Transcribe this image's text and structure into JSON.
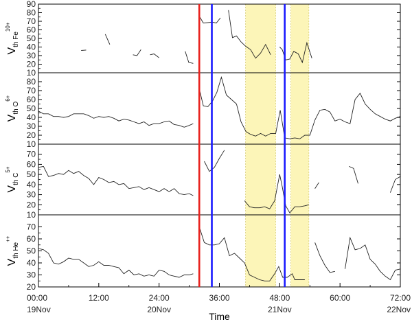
{
  "chart_data": {
    "type": "line",
    "xlabel": "Time",
    "x_range_hours": [
      0,
      72
    ],
    "x_ticks": [
      {
        "hour": 0,
        "label": "00:00",
        "date": "19Nov"
      },
      {
        "hour": 12,
        "label": "12:00",
        "date": ""
      },
      {
        "hour": 24,
        "label": "24:00",
        "date": "20Nov"
      },
      {
        "hour": 36,
        "label": "36:00",
        "date": ""
      },
      {
        "hour": 48,
        "label": "48:00",
        "date": "21Nov"
      },
      {
        "hour": 60,
        "label": "60:00",
        "date": ""
      },
      {
        "hour": 72,
        "label": "72:00",
        "date": "22Nov"
      }
    ],
    "vertical_lines": [
      {
        "hour": 32,
        "color": "#e8201c"
      },
      {
        "hour": 34.5,
        "color": "#1a1aff"
      },
      {
        "hour": 49,
        "color": "#1a1aff"
      }
    ],
    "shaded_regions": [
      {
        "start": 41.2,
        "end": 47.2,
        "color": "#fcf5b8"
      },
      {
        "start": 50.2,
        "end": 53.8,
        "color": "#fcf5b8"
      }
    ],
    "panels": [
      {
        "id": "fe",
        "ylabel": {
          "main": "V",
          "sub": "th Fe",
          "sup": "10+"
        },
        "ylim": [
          10,
          90
        ],
        "yticks": [
          10,
          20,
          30,
          40,
          50,
          60,
          70,
          80,
          90
        ],
        "segments": [
          [
            [
              8.5,
              36
            ],
            [
              9.5,
              36.5
            ]
          ],
          [
            [
              13.3,
              55
            ],
            [
              14.2,
              43
            ]
          ],
          [
            [
              18.8,
              31
            ],
            [
              19.6,
              30
            ],
            [
              20.4,
              37
            ]
          ],
          [
            [
              22.2,
              31
            ],
            [
              23.0,
              32
            ],
            [
              24.0,
              27.5
            ]
          ],
          [
            [
              29.2,
              35
            ],
            [
              29.9,
              22
            ],
            [
              30.8,
              21
            ]
          ],
          [
            [
              32.0,
              76
            ],
            [
              32.8,
              68
            ],
            [
              33.7,
              68.5
            ],
            [
              34.6,
              69
            ],
            [
              35.4,
              68
            ],
            [
              36.2,
              74
            ]
          ],
          [
            [
              37.8,
              83
            ],
            [
              38.6,
              51
            ],
            [
              39.4,
              53
            ],
            [
              40.3,
              46
            ],
            [
              41.2,
              41
            ],
            [
              42.2,
              37
            ],
            [
              43.2,
              27
            ],
            [
              44.2,
              33
            ],
            [
              45.2,
              43
            ],
            [
              46.2,
              31
            ]
          ],
          [
            [
              48.0,
              40
            ],
            [
              48.5,
              37
            ],
            [
              49.2,
              25
            ],
            [
              50.0,
              26
            ],
            [
              50.8,
              35
            ],
            [
              51.7,
              32
            ],
            [
              52.5,
              22
            ],
            [
              53.4,
              45
            ],
            [
              54.4,
              27
            ]
          ]
        ]
      },
      {
        "id": "o",
        "ylabel": {
          "main": "V",
          "sub": "th O",
          "sup": "6+"
        },
        "ylim": [
          10,
          90
        ],
        "yticks": [
          10,
          20,
          30,
          40,
          50,
          60,
          70,
          80
        ],
        "segments": [
          [
            [
              0.0,
              47
            ],
            [
              1.0,
              44
            ],
            [
              2.0,
              44
            ],
            [
              3.0,
              41
            ],
            [
              4.0,
              41
            ],
            [
              5.0,
              40
            ],
            [
              6.0,
              41
            ],
            [
              7.0,
              44
            ],
            [
              8.0,
              44
            ],
            [
              9.0,
              44
            ],
            [
              10.0,
              42
            ],
            [
              11.0,
              39
            ],
            [
              12.0,
              41
            ],
            [
              13.0,
              40
            ],
            [
              14.0,
              41
            ],
            [
              15.0,
              39
            ],
            [
              16.0,
              36
            ],
            [
              17.0,
              38
            ],
            [
              18.0,
              37
            ],
            [
              19.0,
              35
            ],
            [
              20.0,
              33
            ],
            [
              21.0,
              35
            ],
            [
              22.0,
              31
            ],
            [
              23.0,
              33
            ],
            [
              24.0,
              33
            ],
            [
              25.0,
              35
            ],
            [
              26.0,
              36
            ],
            [
              27.0,
              32
            ],
            [
              28.0,
              31
            ],
            [
              29.0,
              29
            ],
            [
              30.0,
              31
            ],
            [
              30.8,
              33
            ]
          ],
          [
            [
              32.0,
              72
            ],
            [
              32.8,
              53
            ],
            [
              33.7,
              52
            ],
            [
              34.6,
              58
            ],
            [
              35.5,
              68
            ],
            [
              36.4,
              85
            ],
            [
              37.4,
              65
            ],
            [
              38.4,
              60
            ],
            [
              39.4,
              55
            ],
            [
              40.3,
              35
            ],
            [
              41.3,
              24
            ],
            [
              42.2,
              21
            ],
            [
              43.2,
              19
            ],
            [
              44.2,
              22
            ],
            [
              45.2,
              19
            ],
            [
              46.2,
              22
            ],
            [
              47.2,
              22
            ],
            [
              48.1,
              48
            ],
            [
              49.0,
              17
            ],
            [
              50.0,
              16
            ],
            [
              51.0,
              17
            ],
            [
              52.0,
              16
            ],
            [
              53.0,
              20
            ],
            [
              54.0,
              20
            ],
            [
              55.0,
              37
            ],
            [
              56.0,
              48
            ],
            [
              57.0,
              49
            ],
            [
              58.0,
              46
            ],
            [
              59.0,
              36
            ],
            [
              60.0,
              38
            ],
            [
              61.0,
              35
            ],
            [
              62.0,
              33
            ],
            [
              63.0,
              60
            ],
            [
              64.0,
              67
            ],
            [
              65.0,
              55
            ],
            [
              66.0,
              49
            ],
            [
              67.0,
              44
            ],
            [
              68.0,
              41
            ],
            [
              69.0,
              38
            ],
            [
              70.0,
              36
            ],
            [
              71.0,
              39
            ],
            [
              72.0,
              41
            ]
          ]
        ]
      },
      {
        "id": "c",
        "ylabel": {
          "main": "V",
          "sub": "th C",
          "sup": "5+"
        },
        "ylim": [
          10,
          80
        ],
        "yticks": [
          10,
          20,
          30,
          40,
          50,
          60,
          70
        ],
        "segments": [
          [
            [
              0.0,
              57
            ],
            [
              1.0,
              58
            ],
            [
              2.0,
              48
            ],
            [
              3.0,
              49
            ],
            [
              4.0,
              51
            ],
            [
              5.0,
              50
            ],
            [
              6.0,
              54
            ],
            [
              7.0,
              51
            ],
            [
              8.0,
              53
            ],
            [
              9.0,
              49
            ],
            [
              10.0,
              46
            ],
            [
              11.0,
              40
            ],
            [
              12.0,
              47
            ],
            [
              13.0,
              45
            ],
            [
              14.0,
              42
            ],
            [
              15.0,
              43
            ],
            [
              16.0,
              40
            ],
            [
              17.0,
              41
            ],
            [
              18.0,
              36
            ],
            [
              19.0,
              37
            ],
            [
              20.0,
              38
            ],
            [
              21.0,
              35
            ],
            [
              22.0,
              37
            ],
            [
              23.0,
              35
            ],
            [
              24.0,
              33
            ],
            [
              25.0,
              36
            ],
            [
              26.0,
              33
            ],
            [
              27.0,
              36
            ],
            [
              28.0,
              31
            ],
            [
              29.0,
              30
            ],
            [
              30.0,
              31
            ],
            [
              30.8,
              29
            ]
          ],
          [
            [
              33.0,
              63
            ],
            [
              34.0,
              53
            ],
            [
              35.0,
              57
            ],
            [
              36.0,
              66
            ],
            [
              37.0,
              74
            ]
          ],
          [
            [
              41.0,
              24
            ],
            [
              42.0,
              18
            ],
            [
              43.0,
              17
            ],
            [
              44.0,
              17
            ],
            [
              45.0,
              18
            ],
            [
              46.0,
              16
            ],
            [
              47.0,
              24
            ],
            [
              48.0,
              50
            ],
            [
              48.5,
              38
            ],
            [
              49.2,
              19
            ],
            [
              50.0,
              12
            ],
            [
              51.0,
              18
            ],
            [
              52.0,
              18
            ],
            [
              53.0,
              19
            ],
            [
              53.8,
              20
            ]
          ],
          [
            [
              55.0,
              36
            ],
            [
              55.8,
              42
            ]
          ],
          [
            [
              61.8,
              58
            ],
            [
              62.7,
              56
            ],
            [
              63.6,
              41
            ]
          ],
          [
            [
              70.0,
              32
            ],
            [
              71.0,
              45
            ],
            [
              72.0,
              48
            ]
          ]
        ]
      },
      {
        "id": "he",
        "ylabel": {
          "main": "V",
          "sub": "th He",
          "sup": "++"
        },
        "ylim": [
          20,
          80
        ],
        "yticks": [
          20,
          30,
          40,
          50,
          60,
          70
        ],
        "segments": [
          [
            [
              0.0,
              52
            ],
            [
              1.0,
              51
            ],
            [
              2.0,
              48
            ],
            [
              3.0,
              40
            ],
            [
              4.0,
              39
            ],
            [
              5.0,
              41
            ],
            [
              6.0,
              44
            ],
            [
              7.0,
              43
            ],
            [
              8.0,
              43
            ],
            [
              9.0,
              40
            ],
            [
              10.0,
              37
            ],
            [
              11.0,
              38
            ],
            [
              12.0,
              41
            ],
            [
              13.0,
              38
            ],
            [
              14.0,
              38
            ],
            [
              15.0,
              37
            ],
            [
              16.0,
              36
            ],
            [
              17.0,
              31
            ],
            [
              18.0,
              34
            ],
            [
              19.0,
              30
            ],
            [
              20.0,
              31
            ],
            [
              21.0,
              29
            ],
            [
              22.0,
              30
            ],
            [
              23.0,
              29
            ],
            [
              24.0,
              34
            ],
            [
              25.0,
              33
            ],
            [
              26.0,
              30
            ],
            [
              27.0,
              29
            ],
            [
              28.0,
              28
            ],
            [
              29.0,
              30
            ],
            [
              30.0,
              30
            ],
            [
              30.8,
              31
            ]
          ],
          [
            [
              32.0,
              70
            ],
            [
              33.0,
              57
            ],
            [
              34.0,
              55
            ],
            [
              35.0,
              55
            ],
            [
              36.0,
              56
            ],
            [
              37.0,
              61
            ],
            [
              38.0,
              46
            ],
            [
              39.0,
              48
            ],
            [
              40.0,
              44
            ],
            [
              41.0,
              40
            ],
            [
              42.0,
              30
            ],
            [
              43.0,
              28
            ],
            [
              44.0,
              26
            ],
            [
              45.0,
              25
            ],
            [
              46.0,
              25
            ],
            [
              47.0,
              31
            ],
            [
              47.8,
              37
            ],
            [
              48.6,
              28
            ],
            [
              49.5,
              28
            ],
            [
              50.5,
              31
            ],
            [
              51.0,
              26
            ],
            [
              52.0,
              26
            ],
            [
              53.0,
              26
            ]
          ],
          [
            [
              55.0,
              57
            ],
            [
              56.0,
              46
            ],
            [
              57.0,
              38
            ],
            [
              58.0,
              32
            ],
            [
              59.0,
              33
            ]
          ],
          [
            [
              61.0,
              35
            ],
            [
              62.0,
              61
            ],
            [
              63.0,
              51
            ],
            [
              64.0,
              52
            ],
            [
              65.0,
              55
            ],
            [
              66.0,
              43
            ],
            [
              67.0,
              39
            ],
            [
              68.0,
              33
            ],
            [
              69.0,
              29
            ],
            [
              70.0,
              26
            ],
            [
              71.0,
              34
            ],
            [
              72.0,
              35
            ]
          ]
        ]
      }
    ]
  }
}
